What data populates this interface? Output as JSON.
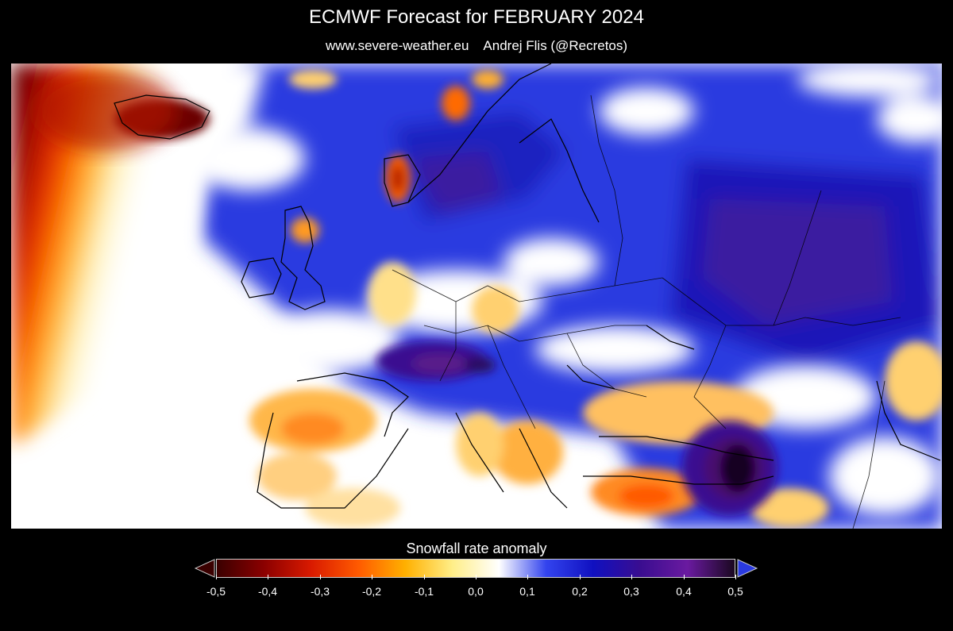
{
  "header": {
    "title": "ECMWF Forecast for FEBRUARY 2024",
    "site": "www.severe-weather.eu",
    "author": "Andrej Flis (@Recretos)"
  },
  "legend": {
    "title": "Snowfall rate anomaly",
    "ticks": [
      "-0,5",
      "-0,4",
      "-0,3",
      "-0,2",
      "-0,1",
      "0,0",
      "0,1",
      "0,2",
      "0,3",
      "0,4",
      "0,5"
    ],
    "colors": [
      "#3a0000",
      "#8b0000",
      "#d91a00",
      "#ff5a00",
      "#ffb000",
      "#ffee88",
      "#ffffff",
      "#3344ee",
      "#1010c0",
      "#3a0d90",
      "#6a1aa0",
      "#1a0820"
    ]
  },
  "map": {
    "region": "Europe",
    "variable": "Snowfall rate anomaly",
    "period": "February 2024"
  }
}
